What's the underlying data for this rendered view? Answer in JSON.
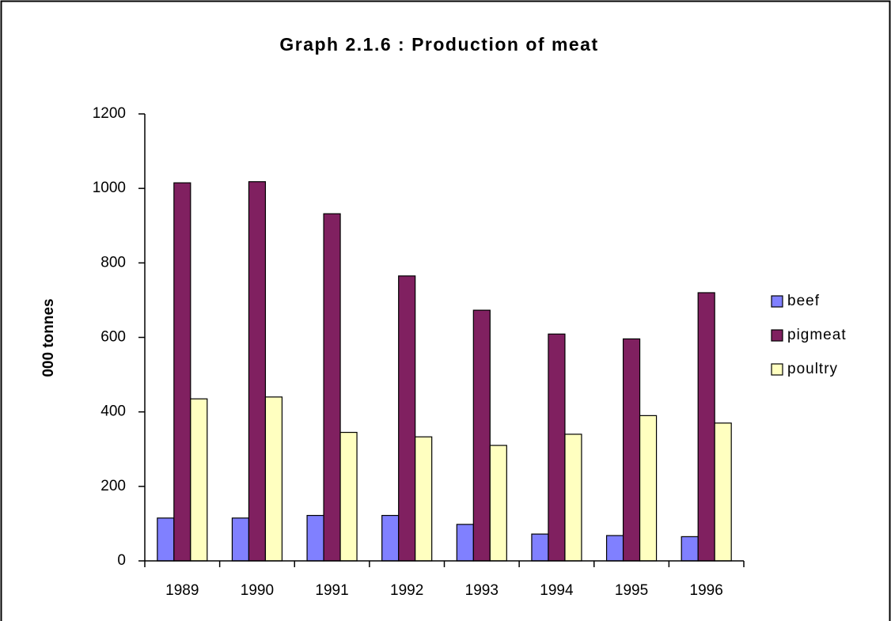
{
  "chart_data": {
    "type": "bar",
    "title": "Graph 2.1.6 : Production of meat",
    "y_label": "000 tonnes",
    "categories": [
      "1989",
      "1990",
      "1991",
      "1992",
      "1993",
      "1994",
      "1995",
      "1996"
    ],
    "series": [
      {
        "name": "beef",
        "color": "#8080ff",
        "values": [
          115,
          115,
          122,
          122,
          98,
          72,
          68,
          65
        ]
      },
      {
        "name": "pigmeat",
        "color": "#802060",
        "values": [
          1015,
          1018,
          932,
          765,
          673,
          609,
          596,
          720
        ]
      },
      {
        "name": "poultry",
        "color": "#ffffc0",
        "values": [
          435,
          440,
          345,
          333,
          310,
          340,
          390,
          370
        ]
      }
    ],
    "ylim": [
      0,
      1200
    ],
    "yticks": [
      0,
      200,
      400,
      600,
      800,
      1000,
      1200
    ],
    "grid": false,
    "legend": "right"
  }
}
